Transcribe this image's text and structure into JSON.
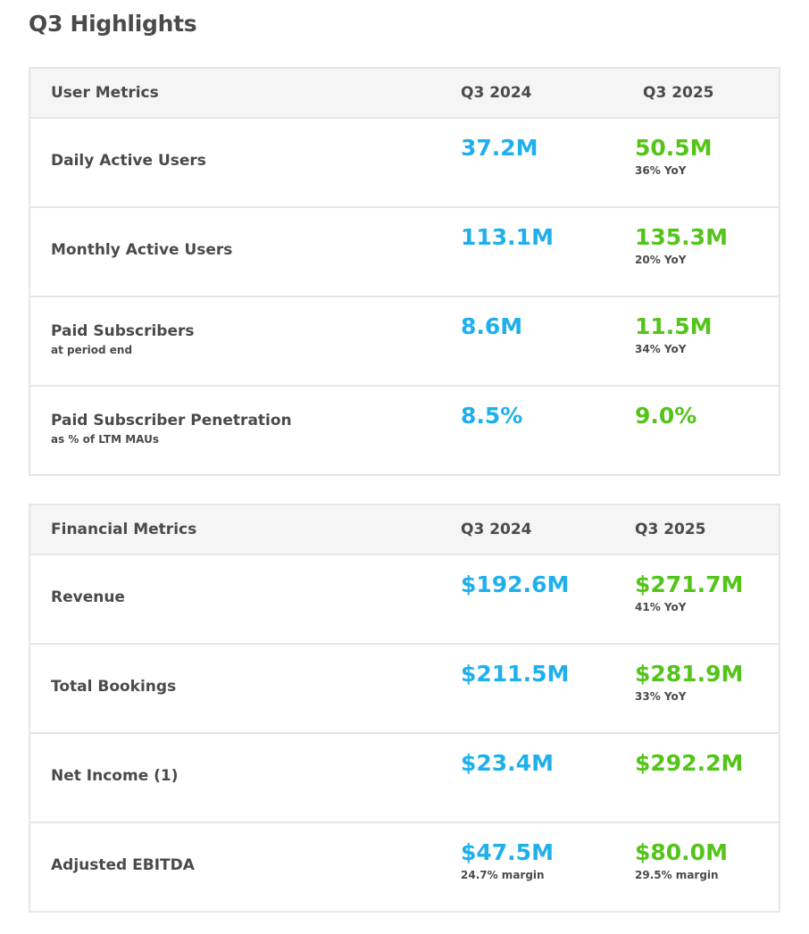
{
  "title": "Q3 Highlights",
  "user_metrics": {
    "header": {
      "label": "User Metrics",
      "col1": "Q3 2024",
      "col2": "Q3 2025"
    },
    "rows": [
      {
        "label": "Daily Active Users",
        "sub": "",
        "v1": "37.2M",
        "n1": "",
        "v2": "50.5M",
        "n2": "36% YoY"
      },
      {
        "label": "Monthly Active Users",
        "sub": "",
        "v1": "113.1M",
        "n1": "",
        "v2": "135.3M",
        "n2": "20% YoY"
      },
      {
        "label": "Paid Subscribers",
        "sub": "at period end",
        "v1": "8.6M",
        "n1": "",
        "v2": "11.5M",
        "n2": "34% YoY"
      },
      {
        "label": "Paid Subscriber Penetration",
        "sub": "as % of LTM MAUs",
        "v1": "8.5%",
        "n1": "",
        "v2": "9.0%",
        "n2": ""
      }
    ]
  },
  "financial_metrics": {
    "header": {
      "label": "Financial Metrics",
      "col1": "Q3 2024",
      "col2": "Q3 2025"
    },
    "rows": [
      {
        "label": "Revenue",
        "sub": "",
        "v1": "$192.6M",
        "n1": "",
        "v2": "$271.7M",
        "n2": "41% YoY"
      },
      {
        "label": "Total Bookings",
        "sub": "",
        "v1": "$211.5M",
        "n1": "",
        "v2": "$281.9M",
        "n2": "33% YoY"
      },
      {
        "label": "Net Income (1)",
        "sub": "",
        "v1": "$23.4M",
        "n1": "",
        "v2": "$292.2M",
        "n2": ""
      },
      {
        "label": "Adjusted EBITDA",
        "sub": "",
        "v1": "$47.5M",
        "n1": "24.7% margin",
        "v2": "$80.0M",
        "n2": "29.5% margin"
      }
    ]
  },
  "colors": {
    "prior": "#1fb0ec",
    "current": "#55c41a"
  }
}
